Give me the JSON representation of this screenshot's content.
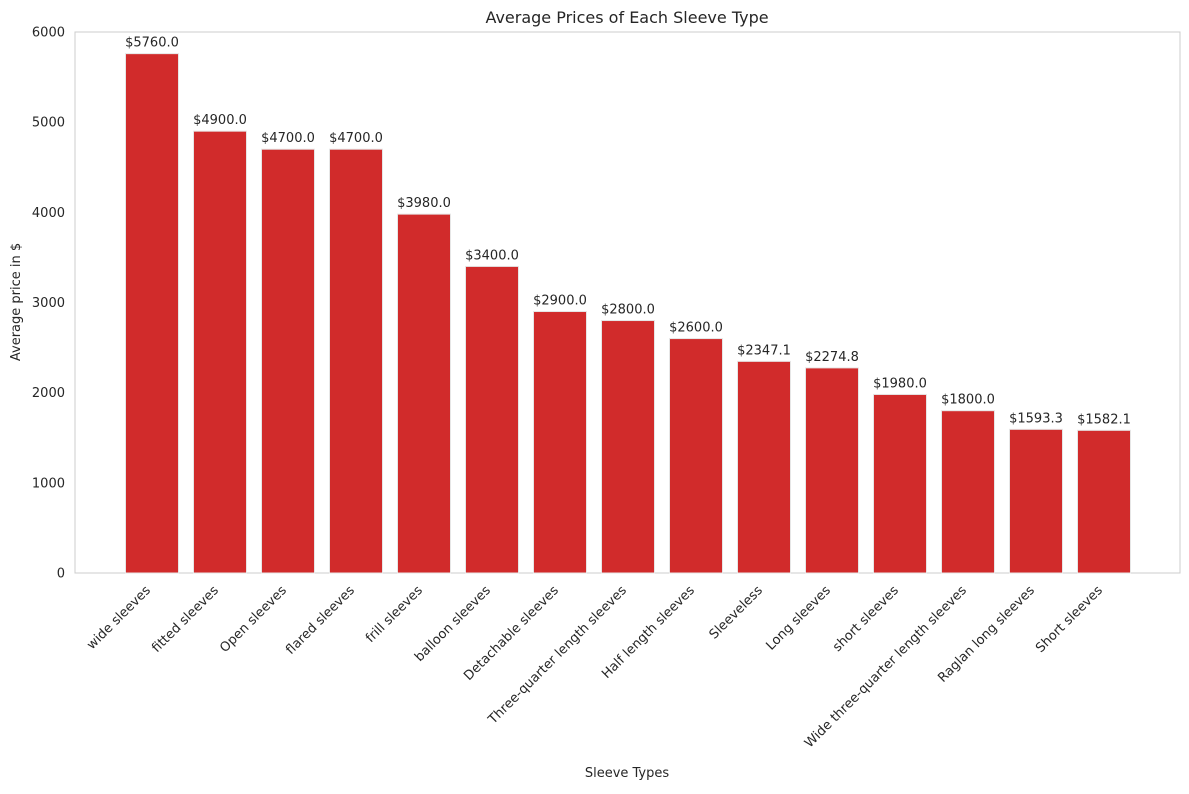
{
  "chart_data": {
    "type": "bar",
    "title": "Average Prices of Each Sleeve Type",
    "xlabel": "Sleeve Types",
    "ylabel": "Average price in $",
    "ylim": [
      0,
      6000
    ],
    "yticks": [
      0,
      1000,
      2000,
      3000,
      4000,
      5000,
      6000
    ],
    "grid": false,
    "legend": "none",
    "bar_color": "#d12b2b",
    "categories": [
      "wide sleeves",
      "fitted sleeves",
      "Open sleeves",
      "flared sleeves",
      "frill sleeves",
      "balloon sleeves",
      "Detachable sleeves",
      "Three-quarter length sleeves",
      "Half length sleeves",
      "Sleeveless",
      "Long sleeves",
      "short sleeves",
      "Wide three-quarter length sleeves",
      "Raglan long sleeves",
      "Short sleeves"
    ],
    "values": [
      5760.0,
      4900.0,
      4700.0,
      4700.0,
      3980.0,
      3400.0,
      2900.0,
      2800.0,
      2600.0,
      2347.1,
      2274.8,
      1980.0,
      1800.0,
      1593.3,
      1582.1
    ],
    "data_labels": [
      "$5760.0",
      "$4900.0",
      "$4700.0",
      "$4700.0",
      "$3980.0",
      "$3400.0",
      "$2900.0",
      "$2800.0",
      "$2600.0",
      "$2347.1",
      "$2274.8",
      "$1980.0",
      "$1800.0",
      "$1593.3",
      "$1582.1"
    ]
  }
}
